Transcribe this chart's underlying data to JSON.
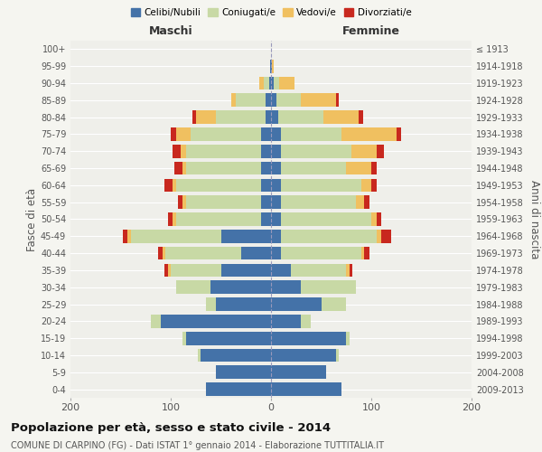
{
  "age_groups": [
    "0-4",
    "5-9",
    "10-14",
    "15-19",
    "20-24",
    "25-29",
    "30-34",
    "35-39",
    "40-44",
    "45-49",
    "50-54",
    "55-59",
    "60-64",
    "65-69",
    "70-74",
    "75-79",
    "80-84",
    "85-89",
    "90-94",
    "95-99",
    "100+"
  ],
  "birth_years": [
    "2009-2013",
    "2004-2008",
    "1999-2003",
    "1994-1998",
    "1989-1993",
    "1984-1988",
    "1979-1983",
    "1974-1978",
    "1969-1973",
    "1964-1968",
    "1959-1963",
    "1954-1958",
    "1949-1953",
    "1944-1948",
    "1939-1943",
    "1934-1938",
    "1929-1933",
    "1924-1928",
    "1919-1923",
    "1914-1918",
    "≤ 1913"
  ],
  "males": {
    "celibi": [
      65,
      55,
      70,
      85,
      110,
      55,
      60,
      50,
      30,
      50,
      10,
      10,
      10,
      10,
      10,
      10,
      5,
      5,
      2,
      1,
      0
    ],
    "coniugati": [
      0,
      0,
      3,
      3,
      10,
      10,
      35,
      50,
      75,
      90,
      85,
      75,
      85,
      75,
      75,
      70,
      50,
      30,
      5,
      0,
      0
    ],
    "vedovi": [
      0,
      0,
      0,
      0,
      0,
      0,
      0,
      3,
      3,
      3,
      3,
      3,
      3,
      3,
      5,
      15,
      20,
      5,
      5,
      0,
      0
    ],
    "divorziati": [
      0,
      0,
      0,
      0,
      0,
      0,
      0,
      3,
      5,
      5,
      5,
      5,
      8,
      8,
      8,
      5,
      3,
      0,
      0,
      0,
      0
    ]
  },
  "females": {
    "nubili": [
      70,
      55,
      65,
      75,
      30,
      50,
      30,
      20,
      10,
      10,
      10,
      10,
      10,
      10,
      10,
      10,
      7,
      5,
      3,
      1,
      0
    ],
    "coniugate": [
      0,
      0,
      3,
      3,
      10,
      25,
      55,
      55,
      80,
      95,
      90,
      75,
      80,
      65,
      70,
      60,
      45,
      25,
      5,
      0,
      0
    ],
    "vedove": [
      0,
      0,
      0,
      0,
      0,
      0,
      0,
      3,
      3,
      5,
      5,
      8,
      10,
      25,
      25,
      55,
      35,
      35,
      15,
      2,
      0
    ],
    "divorziate": [
      0,
      0,
      0,
      0,
      0,
      0,
      0,
      3,
      5,
      10,
      5,
      5,
      5,
      5,
      8,
      5,
      5,
      3,
      0,
      0,
      0
    ]
  },
  "colors": {
    "celibi": "#4472a8",
    "coniugati": "#c8d9a5",
    "vedovi": "#f0c060",
    "divorziati": "#c8281e"
  },
  "title": "Popolazione per età, sesso e stato civile - 2014",
  "subtitle": "COMUNE DI CARPINO (FG) - Dati ISTAT 1° gennaio 2014 - Elaborazione TUTTITALIA.IT",
  "xlabel_left": "Maschi",
  "xlabel_right": "Femmine",
  "ylabel_left": "Fasce di età",
  "ylabel_right": "Anni di nascita",
  "xlim": 200,
  "legend_labels": [
    "Celibi/Nubili",
    "Coniugati/e",
    "Vedovi/e",
    "Divorziati/e"
  ],
  "bg_color": "#f5f5f0",
  "plot_bg": "#efefea"
}
